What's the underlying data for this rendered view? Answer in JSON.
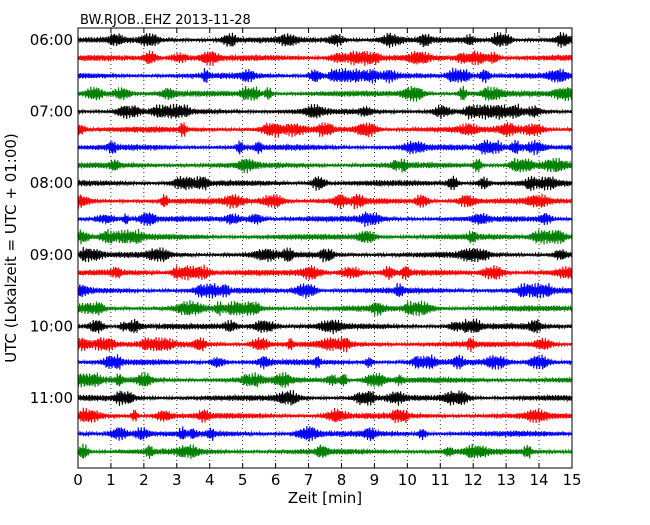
{
  "chart_data": {
    "type": "line",
    "title": "BW.RJOB..EHZ 2013-11-28",
    "xlabel": "Zeit  [min]",
    "ylabel": "UTC (Lokalzeit = UTC + 01:00)",
    "xlim": [
      0,
      15
    ],
    "x_ticks": [
      "0",
      "1",
      "2",
      "3",
      "4",
      "5",
      "6",
      "7",
      "8",
      "9",
      "10",
      "11",
      "12",
      "13",
      "14",
      "15"
    ],
    "y_tick_labels": [
      "06:00",
      "07:00",
      "08:00",
      "09:00",
      "10:00",
      "11:00"
    ],
    "trace_start_times": [
      "06:00",
      "06:15",
      "06:30",
      "06:45",
      "07:00",
      "07:15",
      "07:30",
      "07:45",
      "08:00",
      "08:15",
      "08:30",
      "08:45",
      "09:00",
      "09:15",
      "09:30",
      "09:45",
      "10:00",
      "10:15",
      "10:30",
      "10:45",
      "11:00",
      "11:15",
      "11:30",
      "11:45"
    ],
    "trace_color_cycle": [
      "#000000",
      "#ff0000",
      "#0000ff",
      "#008000"
    ],
    "grid": "dotted vertical",
    "waveform_style": "continuous seismic noise with bursts, amplitude roughly ±0.4 trace spacing"
  }
}
